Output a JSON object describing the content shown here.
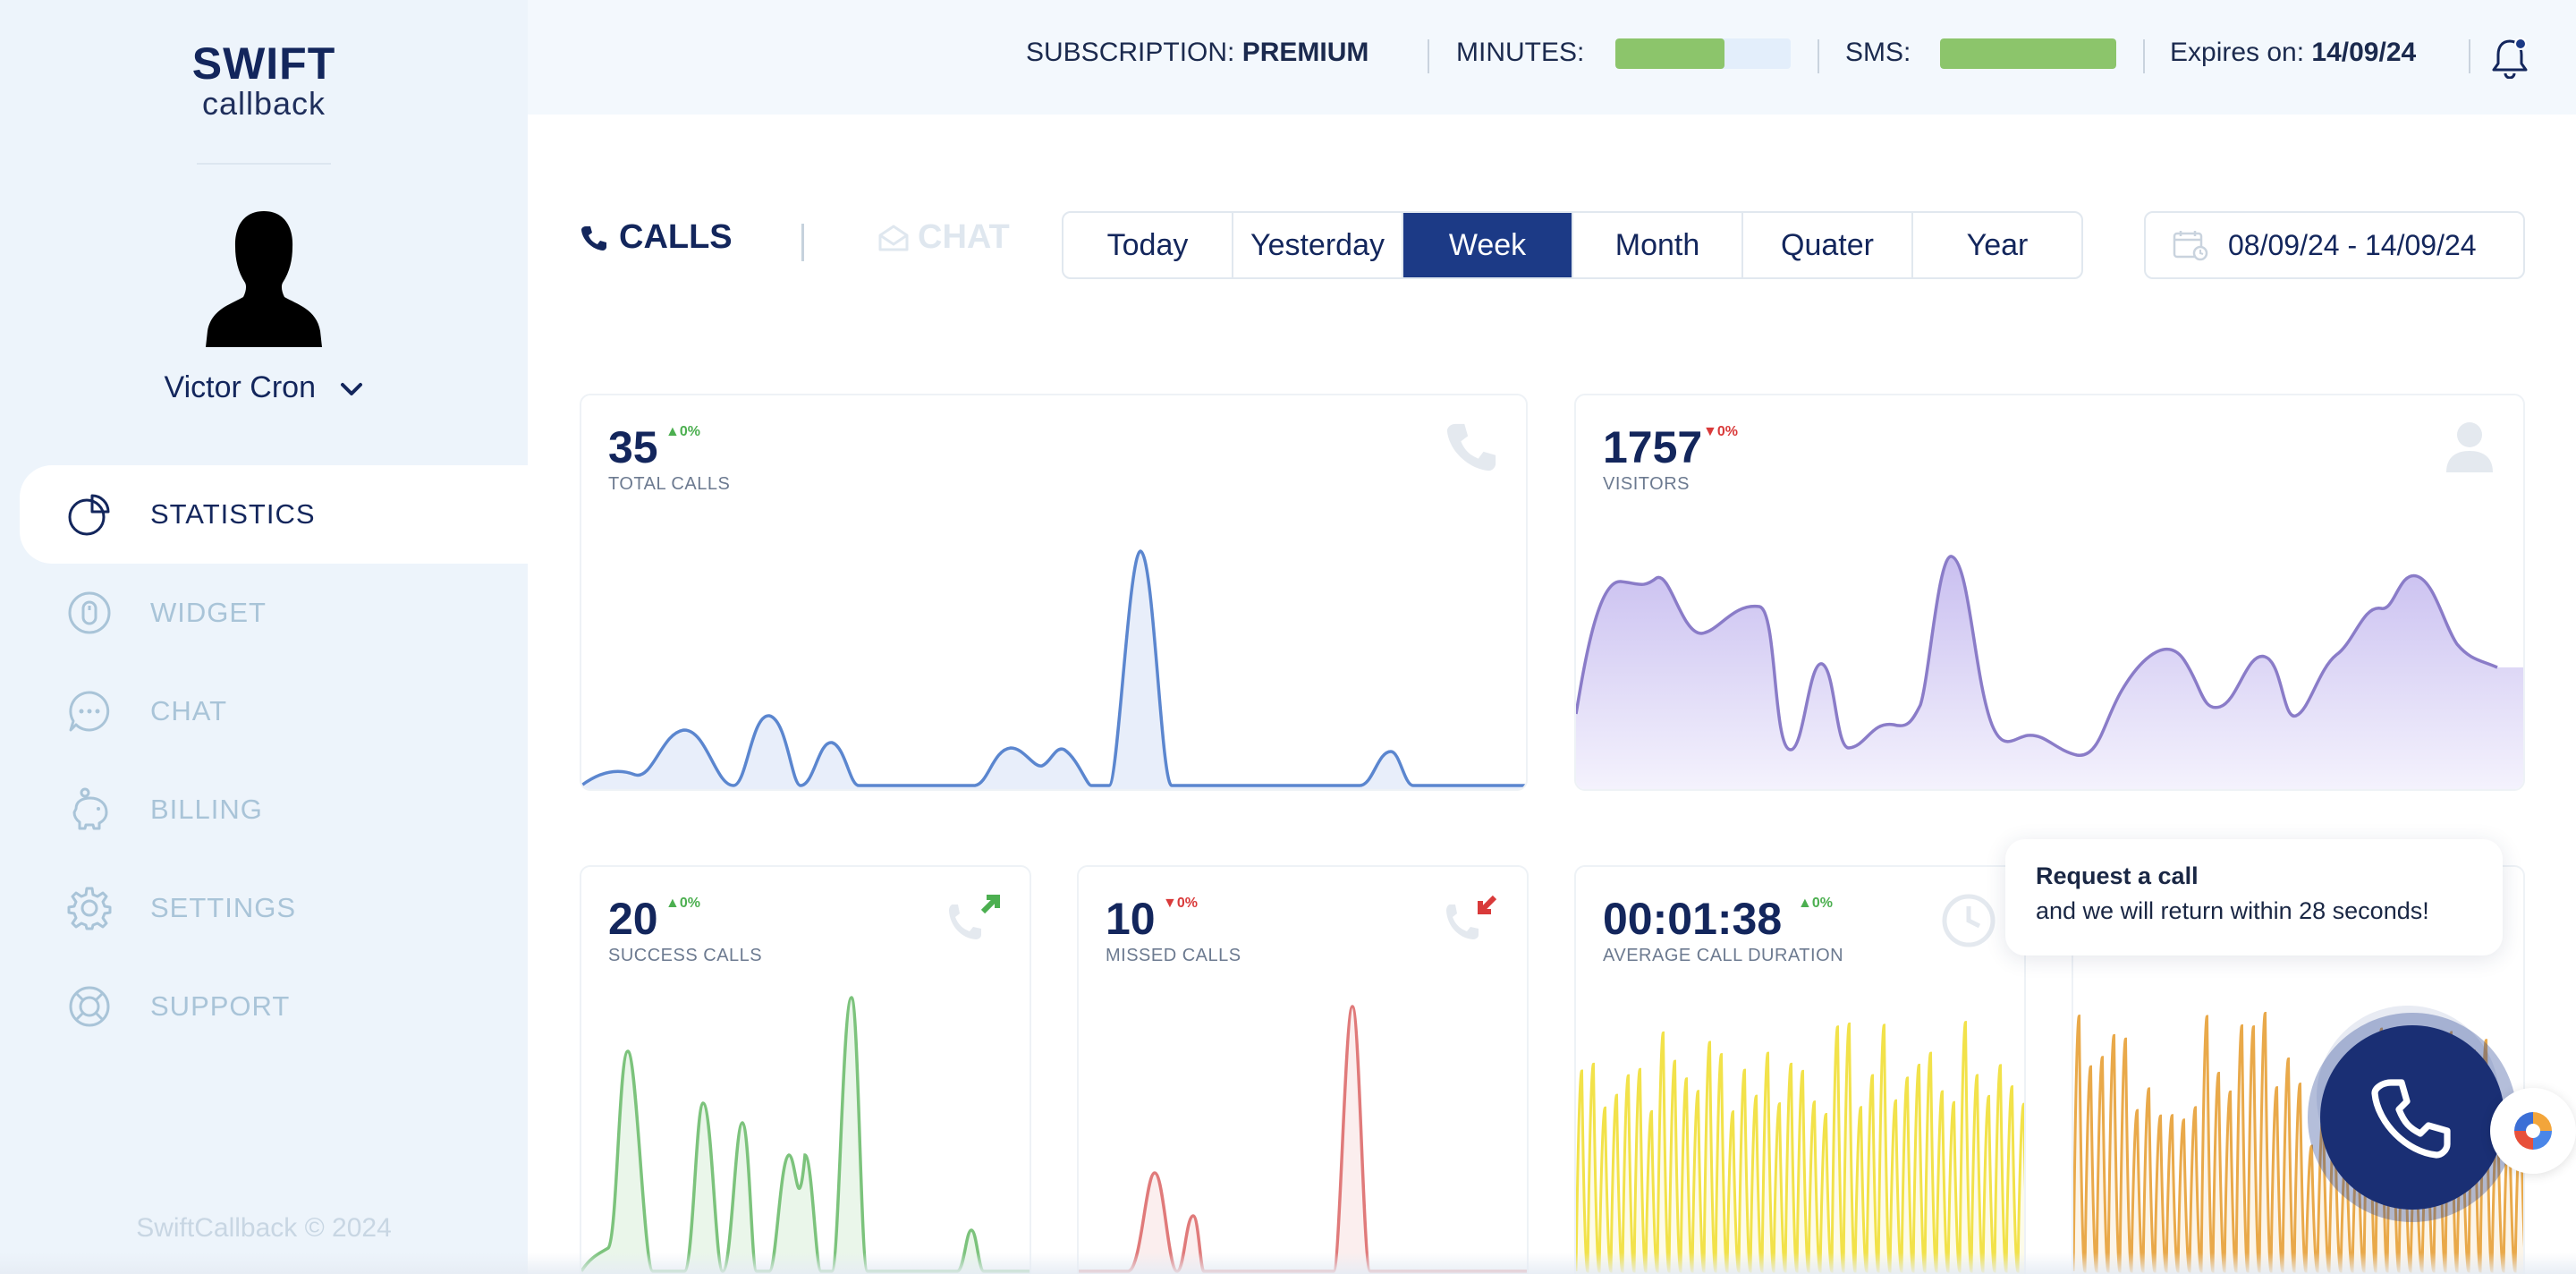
{
  "brand": {
    "name": "SWIFT",
    "sub": "callback"
  },
  "user": {
    "name": "Victor Cron"
  },
  "nav": [
    {
      "label": "STATISTICS",
      "icon": "pie-chart-icon",
      "active": true
    },
    {
      "label": "WIDGET",
      "icon": "mouse-icon",
      "active": false
    },
    {
      "label": "CHAT",
      "icon": "chat-bubble-icon",
      "active": false
    },
    {
      "label": "BILLING",
      "icon": "piggy-bank-icon",
      "active": false
    },
    {
      "label": "SETTINGS",
      "icon": "gear-icon",
      "active": false
    },
    {
      "label": "SUPPORT",
      "icon": "lifebuoy-icon",
      "active": false
    }
  ],
  "footer": {
    "copyright": "SwiftCallback © 2024"
  },
  "topbar": {
    "subscription_label": "SUBSCRIPTION:",
    "subscription_value": "PREMIUM",
    "minutes_label": "MINUTES:",
    "minutes_fraction": 0.62,
    "sms_label": "SMS:",
    "sms_fraction": 1.0,
    "expires_label": "Expires on:",
    "expires_value": "14/09/24"
  },
  "modes": {
    "calls": "CALLS",
    "chat": "CHAT"
  },
  "periods": [
    {
      "label": "Today",
      "active": false
    },
    {
      "label": "Yesterday",
      "active": false
    },
    {
      "label": "Week",
      "active": true
    },
    {
      "label": "Month",
      "active": false
    },
    {
      "label": "Quater",
      "active": false
    },
    {
      "label": "Year",
      "active": false
    }
  ],
  "date_range": "08/09/24 - 14/09/24",
  "cards": {
    "total_calls": {
      "value": "35",
      "trend": "0%",
      "label": "TOTAL CALLS"
    },
    "visitors": {
      "value": "1757",
      "trend": "0%",
      "label": "VISITORS"
    },
    "success_calls": {
      "value": "20",
      "trend": "0%",
      "label": "SUCCESS CALLS"
    },
    "missed_calls": {
      "value": "10",
      "trend": "0%",
      "label": "MISSED CALLS"
    },
    "avg_duration": {
      "value": "00:01:38",
      "trend": "0%",
      "label": "AVERAGE CALL DURATION"
    }
  },
  "request_call": {
    "title": "Request a call",
    "text": "and we will return within 28 seconds!"
  },
  "colors": {
    "accent": "#1c3a86",
    "total_calls_line": "#5b86cf",
    "visitors_line": "#8a7cc8",
    "success_line": "#7cc37c",
    "missed_line": "#e07a7a",
    "duration_line": "#f2e24a",
    "fifth_line": "#e9a94a",
    "trend_up": "#4caf50",
    "trend_down": "#d93a3a"
  }
}
